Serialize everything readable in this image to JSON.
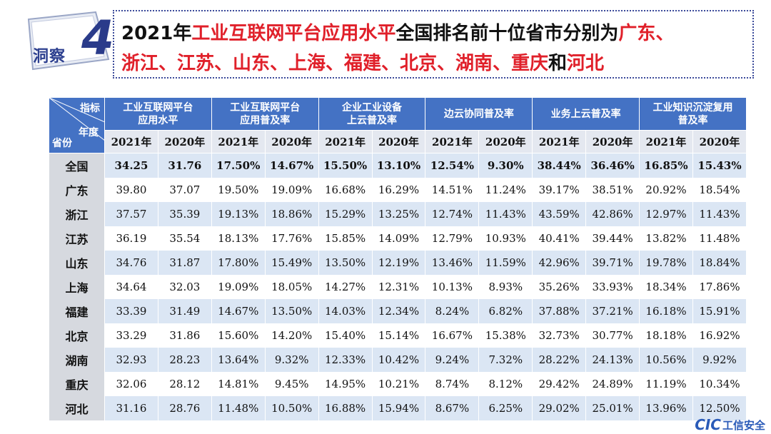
{
  "badge": {
    "label": "洞察",
    "number": "4"
  },
  "title": {
    "line1": [
      {
        "t": "2021年",
        "hl": false
      },
      {
        "t": "工业互联网平台应用水平",
        "hl": true
      },
      {
        "t": "全国排名前十位省市分别为",
        "hl": false
      },
      {
        "t": "广东、",
        "hl": true
      }
    ],
    "line2": [
      {
        "t": "浙江、江苏、山东、上海、福建、北京、湖南、重庆",
        "hl": true
      },
      {
        "t": "和",
        "hl": false
      },
      {
        "t": "河北",
        "hl": true
      }
    ]
  },
  "table": {
    "corner": {
      "indicator": "指标",
      "year": "年度",
      "province": "省份"
    },
    "metrics": [
      [
        "工业互联网平台",
        "应用水平"
      ],
      [
        "工业互联网平台",
        "应用普及率"
      ],
      [
        "企业工业设备",
        "上云普及率"
      ],
      [
        "边云协同普及率"
      ],
      [
        "业务上云普及率"
      ],
      [
        "工业知识沉淀复用",
        "普及率"
      ]
    ],
    "years": [
      "2021年",
      "2020年"
    ],
    "rows": [
      {
        "name": "全国",
        "values": [
          "34.25",
          "31.76",
          "17.50%",
          "14.67%",
          "15.50%",
          "13.10%",
          "12.54%",
          "9.30%",
          "38.44%",
          "36.46%",
          "16.85%",
          "15.43%"
        ]
      },
      {
        "name": "广东",
        "values": [
          "39.80",
          "37.07",
          "19.50%",
          "19.09%",
          "16.68%",
          "16.29%",
          "14.51%",
          "11.24%",
          "39.17%",
          "38.51%",
          "20.92%",
          "18.54%"
        ]
      },
      {
        "name": "浙江",
        "values": [
          "37.57",
          "35.39",
          "19.13%",
          "18.86%",
          "15.29%",
          "13.25%",
          "12.74%",
          "11.43%",
          "43.59%",
          "42.86%",
          "12.97%",
          "11.43%"
        ]
      },
      {
        "name": "江苏",
        "values": [
          "36.19",
          "35.54",
          "18.13%",
          "17.76%",
          "15.85%",
          "14.09%",
          "12.79%",
          "10.93%",
          "40.41%",
          "39.44%",
          "13.82%",
          "11.48%"
        ]
      },
      {
        "name": "山东",
        "values": [
          "34.76",
          "31.87",
          "17.80%",
          "15.49%",
          "13.50%",
          "12.19%",
          "13.46%",
          "11.59%",
          "42.96%",
          "39.71%",
          "19.78%",
          "18.84%"
        ]
      },
      {
        "name": "上海",
        "values": [
          "34.64",
          "32.03",
          "19.09%",
          "18.05%",
          "14.27%",
          "12.31%",
          "10.13%",
          "8.93%",
          "35.26%",
          "33.93%",
          "18.34%",
          "17.86%"
        ]
      },
      {
        "name": "福建",
        "values": [
          "33.39",
          "31.49",
          "14.67%",
          "13.50%",
          "14.03%",
          "12.34%",
          "8.24%",
          "6.82%",
          "37.88%",
          "37.21%",
          "16.18%",
          "15.91%"
        ]
      },
      {
        "name": "北京",
        "values": [
          "33.29",
          "31.86",
          "15.60%",
          "14.20%",
          "15.40%",
          "15.14%",
          "16.67%",
          "15.38%",
          "32.73%",
          "30.77%",
          "18.18%",
          "16.92%"
        ]
      },
      {
        "name": "湖南",
        "values": [
          "32.93",
          "28.23",
          "13.64%",
          "9.32%",
          "12.33%",
          "10.42%",
          "9.24%",
          "7.32%",
          "28.22%",
          "24.13%",
          "10.56%",
          "9.92%"
        ]
      },
      {
        "name": "重庆",
        "values": [
          "32.06",
          "28.12",
          "14.81%",
          "9.45%",
          "14.95%",
          "10.21%",
          "8.74%",
          "8.12%",
          "29.42%",
          "24.89%",
          "11.19%",
          "10.34%"
        ]
      },
      {
        "name": "河北",
        "values": [
          "31.16",
          "28.76",
          "11.48%",
          "10.50%",
          "16.88%",
          "15.94%",
          "8.67%",
          "6.25%",
          "29.02%",
          "25.01%",
          "13.96%",
          "12.50%"
        ]
      }
    ]
  },
  "logo": {
    "mark": "CIC",
    "text": "工信安全"
  },
  "colors": {
    "header_blue": "#4472c4",
    "highlight_red": "#e0202a",
    "stripe": "#dbe6f4"
  }
}
